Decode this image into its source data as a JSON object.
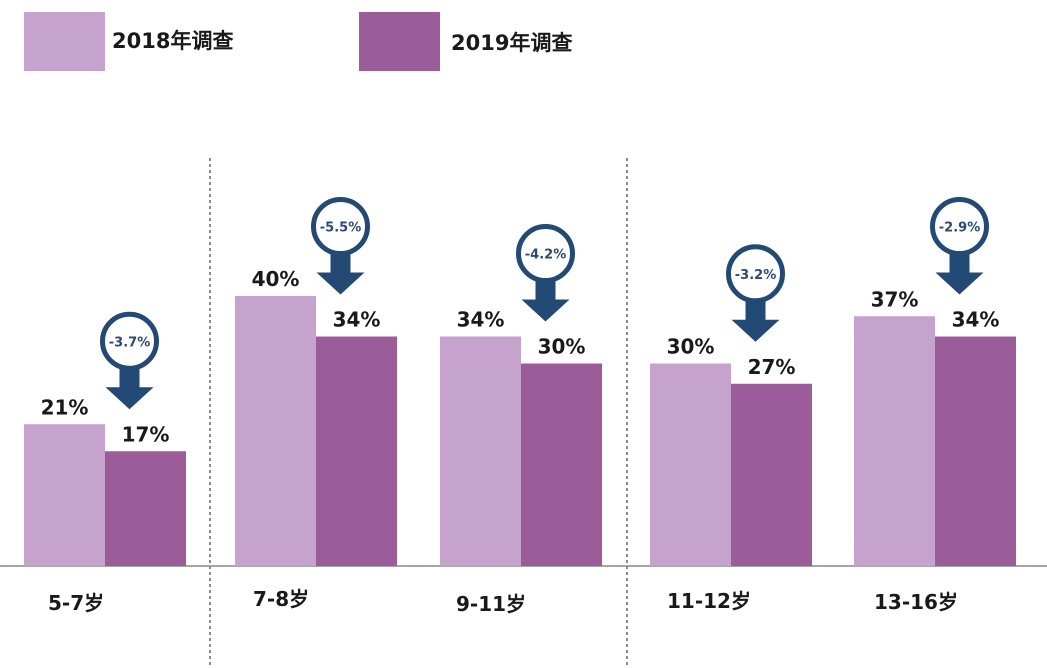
{
  "colors": {
    "series_2018": "#c5a3cc",
    "series_2019": "#9b5c99",
    "arrow": "#234a74",
    "axis": "#888888",
    "divider": "#666666"
  },
  "legend": {
    "items": [
      {
        "label": "2018年调查",
        "color": "#c5a3cc"
      },
      {
        "label": "2019年调查",
        "color": "#9b5c99"
      }
    ]
  },
  "chart_data": {
    "type": "bar",
    "categories": [
      "5-7岁",
      "7-8岁",
      "9-11岁",
      "11-12岁",
      "13-16岁"
    ],
    "series": [
      {
        "name": "2018年调查",
        "values": [
          21,
          40,
          34,
          30,
          37
        ],
        "labels": [
          "21%",
          "40%",
          "34%",
          "30%",
          "37%"
        ]
      },
      {
        "name": "2019年调查",
        "values": [
          17,
          34,
          30,
          27,
          34
        ],
        "labels": [
          "17%",
          "34%",
          "30%",
          "27%",
          "34%"
        ]
      }
    ],
    "differences": [
      "-3.7%",
      "-5.5%",
      "-4.2%",
      "-3.2%",
      "-2.9%"
    ],
    "ylim": [
      0,
      42
    ],
    "grid": false,
    "legend_position": "top-left"
  }
}
